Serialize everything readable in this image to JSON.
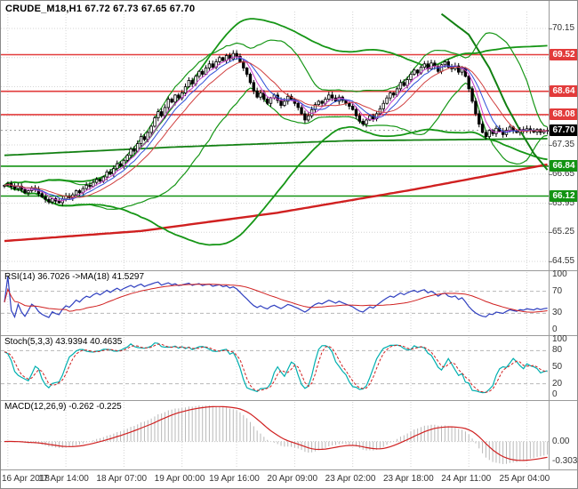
{
  "header": {
    "symbol_line": "CRUDE_M18,H1 67.72 67.73 67.65 67.70"
  },
  "colors": {
    "background": "#ffffff",
    "grid": "#d4d4d4",
    "resistance": "#e23b3b",
    "support": "#129312",
    "current_price_badge": "#000000",
    "bands_green": "#169616",
    "trend_ma_red": "#d02020",
    "fast_ma_blue": "#3050d8",
    "fast_ma_magenta": "#c83cc8",
    "fast_ma_red": "#d04040",
    "rsi_line": "#3040c0",
    "rsi_ma": "#d02020",
    "stoch_k": "#00b0b0",
    "stoch_d": "#d02020",
    "macd_histogram": "#b8b8b8",
    "macd_signal": "#d02020"
  },
  "panels": {
    "rsi": {
      "label": "RSI(14) 36.7026 ->MA(18) 41.5297",
      "axis": [
        100,
        70,
        30,
        0
      ],
      "levels": [
        70,
        30
      ]
    },
    "stoch": {
      "label": "Stoch(5,3,3) 43.9394 40.4635",
      "axis": [
        100,
        80,
        50,
        20,
        0
      ],
      "levels": [
        80,
        20
      ]
    },
    "macd": {
      "label": "MACD(12,26,9) -0.262 -0.225",
      "axis_labels": [
        "0.00",
        "-0.303"
      ],
      "axis_values": [
        0,
        -0.303
      ]
    }
  },
  "price_axis": {
    "grid_labels": [
      70.15,
      67.35,
      66.65,
      65.95,
      65.25,
      64.55
    ],
    "grid_prices": [
      70.15,
      69.45,
      68.75,
      68.05,
      67.35,
      66.65,
      65.95,
      65.25,
      64.55
    ],
    "level_badges": [
      {
        "value": "69.52",
        "color": "#e23b3b"
      },
      {
        "value": "68.64",
        "color": "#e23b3b"
      },
      {
        "value": "68.08",
        "color": "#e23b3b"
      },
      {
        "value": "67.70",
        "color": "#000000"
      },
      {
        "value": "66.84",
        "color": "#129312"
      },
      {
        "value": "66.12",
        "color": "#129312"
      }
    ]
  },
  "time_axis": {
    "labels": [
      "16 Apr 2018",
      "17 Apr 14:00",
      "18 Apr 07:00",
      "19 Apr 00:00",
      "19 Apr 16:00",
      "20 Apr 09:00",
      "23 Apr 02:00",
      "23 Apr 18:00",
      "24 Apr 11:00",
      "25 Apr 04:00"
    ],
    "indices": [
      1,
      18,
      35,
      52,
      68,
      85,
      102,
      119,
      136,
      153
    ]
  },
  "chart_data": {
    "type": "candlestick",
    "symbol": "CRUDE_M18",
    "timeframe": "H1",
    "quote": {
      "open": 67.72,
      "high": 67.73,
      "low": 67.65,
      "close": 67.7
    },
    "y_range": [
      64.4,
      70.6
    ],
    "levels": {
      "resistance": [
        69.52,
        68.64,
        68.08
      ],
      "support": [
        66.84,
        66.12
      ],
      "current": 67.7
    },
    "closes": [
      66.38,
      66.42,
      66.35,
      66.3,
      66.36,
      66.28,
      66.2,
      66.25,
      66.32,
      66.28,
      66.18,
      66.1,
      66.04,
      65.98,
      66.06,
      66.0,
      65.96,
      66.05,
      66.12,
      66.08,
      66.15,
      66.25,
      66.2,
      66.3,
      66.38,
      66.35,
      66.45,
      66.52,
      66.48,
      66.58,
      66.7,
      66.65,
      66.78,
      66.9,
      66.85,
      66.98,
      67.1,
      67.25,
      67.2,
      67.38,
      67.55,
      67.48,
      67.65,
      67.8,
      68.0,
      68.15,
      68.05,
      68.25,
      68.45,
      68.38,
      68.55,
      68.48,
      68.6,
      68.75,
      68.9,
      68.82,
      69.0,
      69.12,
      69.05,
      69.2,
      69.3,
      69.22,
      69.35,
      69.45,
      69.38,
      69.5,
      69.42,
      69.55,
      69.48,
      69.35,
      69.2,
      69.05,
      68.85,
      68.65,
      68.5,
      68.6,
      68.45,
      68.35,
      68.48,
      68.55,
      68.42,
      68.3,
      68.4,
      68.52,
      68.45,
      68.35,
      68.25,
      68.1,
      67.95,
      68.05,
      68.2,
      68.32,
      68.4,
      68.35,
      68.45,
      68.55,
      68.48,
      68.4,
      68.5,
      68.42,
      68.35,
      68.28,
      68.2,
      68.05,
      67.92,
      67.85,
      67.95,
      68.05,
      67.98,
      68.1,
      68.22,
      68.35,
      68.48,
      68.6,
      68.55,
      68.7,
      68.85,
      68.78,
      68.92,
      69.05,
      69.15,
      69.08,
      69.22,
      69.3,
      69.18,
      69.32,
      69.24,
      69.12,
      69.28,
      69.35,
      69.22,
      69.18,
      69.25,
      69.1,
      69.2,
      69.0,
      68.7,
      68.4,
      68.1,
      67.85,
      67.65,
      67.55,
      67.7,
      67.62,
      67.75,
      67.68,
      67.6,
      67.7,
      67.78,
      67.7,
      67.65,
      67.72,
      67.68,
      67.74,
      67.7,
      67.66,
      67.72,
      67.65,
      67.68,
      67.7
    ],
    "indicators": {
      "rsi": {
        "period": 14,
        "value": 36.7026,
        "ma_period": 18,
        "ma_value": 41.5297
      },
      "stochastic": {
        "params": [
          5,
          3,
          3
        ],
        "k": 43.9394,
        "d": 40.4635
      },
      "macd": {
        "params": [
          12,
          26,
          9
        ],
        "macd": -0.262,
        "signal": -0.225
      },
      "bollinger_periods": [
        20,
        55
      ]
    },
    "overlays": {
      "red_trend": [
        [
          0,
          65.04
        ],
        [
          40,
          65.28
        ],
        [
          80,
          65.72
        ],
        [
          120,
          66.28
        ],
        [
          159,
          66.88
        ]
      ],
      "green_flat": [
        [
          0,
          67.1
        ],
        [
          50,
          67.3
        ],
        [
          100,
          67.45
        ],
        [
          159,
          67.5
        ]
      ],
      "green_steep": [
        [
          128,
          70.5
        ],
        [
          136,
          70.0
        ],
        [
          142,
          69.2
        ],
        [
          147,
          68.3
        ],
        [
          151,
          67.7
        ],
        [
          155,
          67.15
        ],
        [
          159,
          66.75
        ]
      ]
    }
  }
}
